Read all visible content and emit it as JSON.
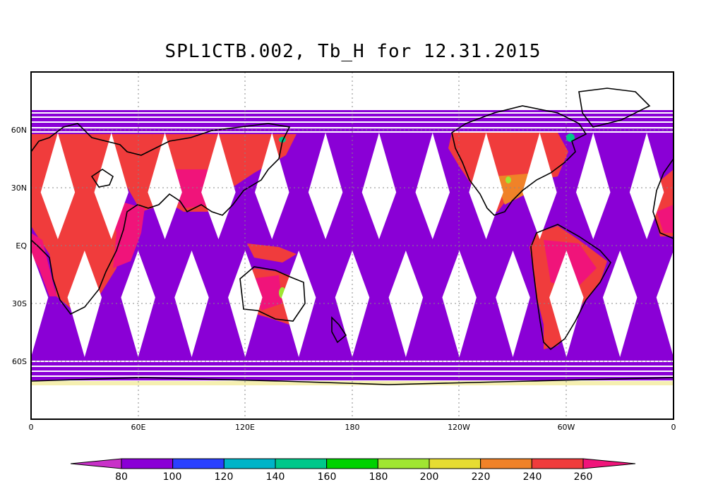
{
  "title": "SPL1CTB.002, Tb_H for 12.31.2015",
  "map": {
    "lon_labels": [
      "0",
      "60E",
      "120E",
      "180",
      "120W",
      "60W",
      "0"
    ],
    "lat_labels": [
      "60N",
      "30N",
      "EQ",
      "30S",
      "60S"
    ],
    "lon_range": [
      0,
      360
    ],
    "lat_range": [
      -90,
      90
    ],
    "grid": "dotted",
    "swath_count": 12
  },
  "colorbar": {
    "ticks": [
      "80",
      "100",
      "120",
      "140",
      "160",
      "180",
      "200",
      "220",
      "240",
      "260"
    ],
    "colors": [
      "#c830c8",
      "#8a00d6",
      "#2a40ff",
      "#00b4c8",
      "#00c88a",
      "#00d200",
      "#a0e632",
      "#e6dc32",
      "#f08228",
      "#f03c3c",
      "#f0147a"
    ]
  }
}
